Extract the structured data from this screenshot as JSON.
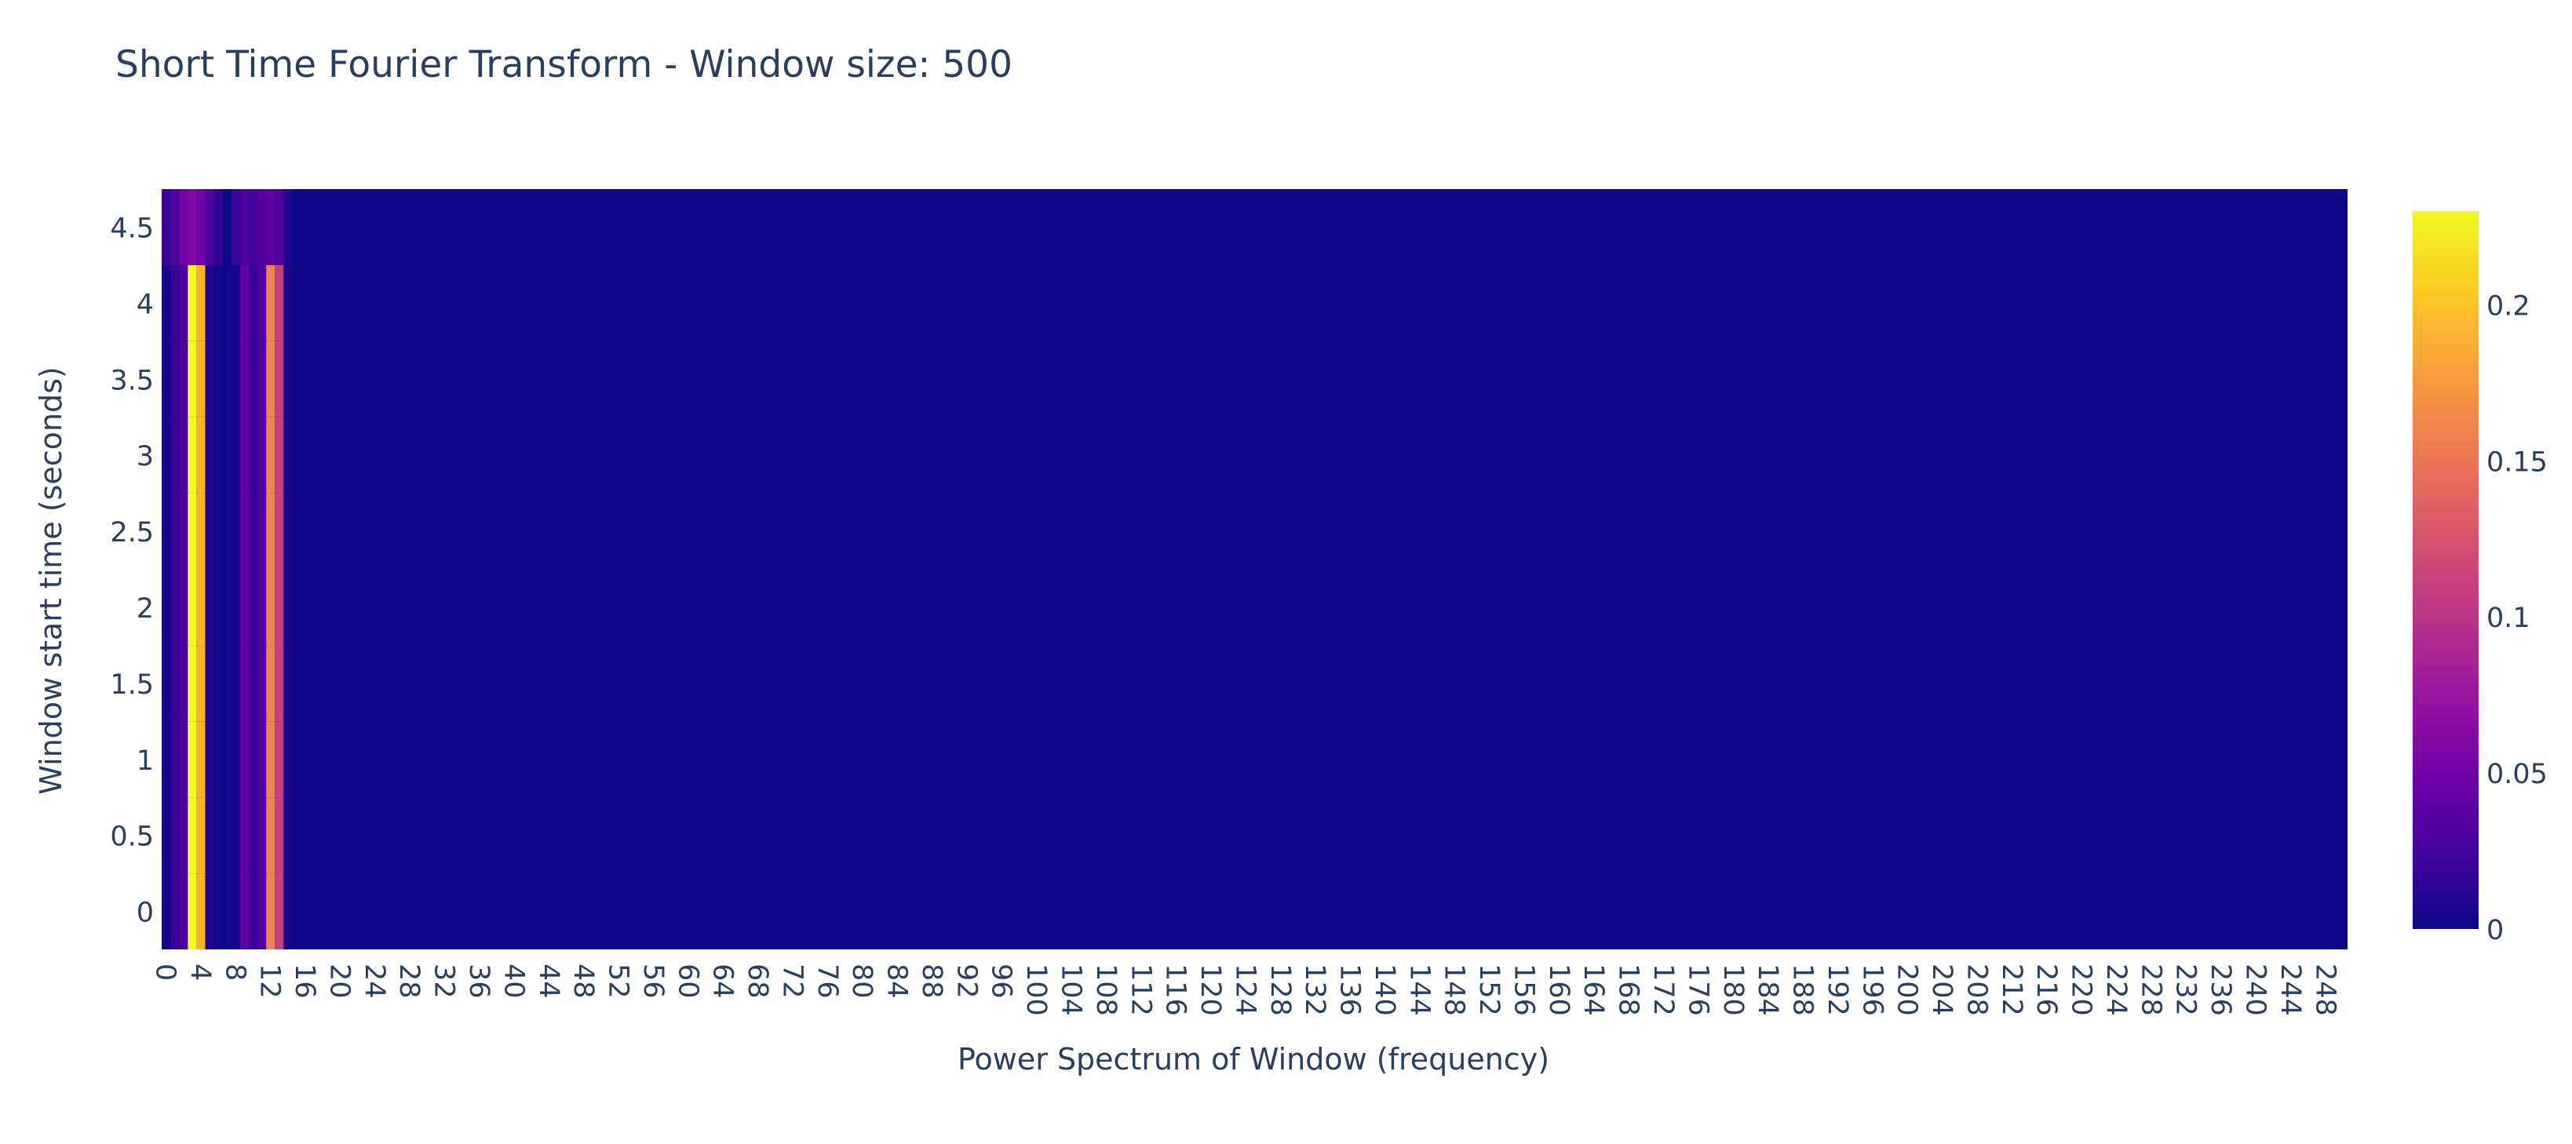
{
  "chart_data": {
    "type": "heatmap",
    "title": "Short Time Fourier Transform  -  Window size: 500",
    "xlabel": "Power Spectrum of Window (frequency)",
    "ylabel": "Window start time (seconds)",
    "x_range": [
      0,
      250
    ],
    "y_range": [
      -0.25,
      4.75
    ],
    "x_tick_step": 4,
    "y_ticks": [
      {
        "value": 0,
        "label": "0"
      },
      {
        "value": 0.5,
        "label": "0.5"
      },
      {
        "value": 1,
        "label": "1"
      },
      {
        "value": 1.5,
        "label": "1.5"
      },
      {
        "value": 2,
        "label": "2"
      },
      {
        "value": 2.5,
        "label": "2.5"
      },
      {
        "value": 3,
        "label": "3"
      },
      {
        "value": 3.5,
        "label": "3.5"
      },
      {
        "value": 4,
        "label": "4"
      },
      {
        "value": 4.5,
        "label": "4.5"
      }
    ],
    "window_starts": [
      0,
      0.5,
      1,
      1.5,
      2,
      2.5,
      3,
      3.5,
      4,
      4.5
    ],
    "frequency_bins": 251,
    "nonzero_power": [
      {
        "freq": 0,
        "rows": [
          0.005,
          0.005,
          0.005,
          0.005,
          0.005,
          0.005,
          0.005,
          0.005,
          0.005,
          0.02
        ]
      },
      {
        "freq": 1,
        "rows": [
          0.02,
          0.02,
          0.02,
          0.02,
          0.02,
          0.02,
          0.02,
          0.02,
          0.02,
          0.03
        ]
      },
      {
        "freq": 2,
        "rows": [
          0.03,
          0.03,
          0.03,
          0.03,
          0.03,
          0.03,
          0.03,
          0.03,
          0.03,
          0.05
        ]
      },
      {
        "freq": 3,
        "rows": [
          0.23,
          0.23,
          0.23,
          0.23,
          0.23,
          0.23,
          0.23,
          0.23,
          0.23,
          0.06
        ]
      },
      {
        "freq": 4,
        "rows": [
          0.19,
          0.19,
          0.19,
          0.19,
          0.19,
          0.19,
          0.19,
          0.19,
          0.19,
          0.05
        ]
      },
      {
        "freq": 5,
        "rows": [
          0.01,
          0.01,
          0.01,
          0.01,
          0.01,
          0.01,
          0.01,
          0.01,
          0.01,
          0.03
        ]
      },
      {
        "freq": 6,
        "rows": [
          0.004,
          0.004,
          0.004,
          0.004,
          0.004,
          0.004,
          0.004,
          0.004,
          0.004,
          0.015
        ]
      },
      {
        "freq": 8,
        "rows": [
          0.004,
          0.004,
          0.004,
          0.004,
          0.004,
          0.004,
          0.004,
          0.004,
          0.004,
          0.02
        ]
      },
      {
        "freq": 9,
        "rows": [
          0.04,
          0.04,
          0.04,
          0.04,
          0.04,
          0.04,
          0.04,
          0.04,
          0.04,
          0.03
        ]
      },
      {
        "freq": 10,
        "rows": [
          0.02,
          0.02,
          0.02,
          0.02,
          0.02,
          0.02,
          0.02,
          0.02,
          0.02,
          0.025
        ]
      },
      {
        "freq": 11,
        "rows": [
          0.03,
          0.03,
          0.03,
          0.03,
          0.03,
          0.03,
          0.03,
          0.03,
          0.03,
          0.035
        ]
      },
      {
        "freq": 12,
        "rows": [
          0.16,
          0.16,
          0.16,
          0.16,
          0.16,
          0.16,
          0.16,
          0.16,
          0.16,
          0.04
        ]
      },
      {
        "freq": 13,
        "rows": [
          0.11,
          0.11,
          0.11,
          0.11,
          0.11,
          0.11,
          0.11,
          0.11,
          0.11,
          0.03
        ]
      },
      {
        "freq": 14,
        "rows": [
          0.005,
          0.005,
          0.005,
          0.005,
          0.005,
          0.005,
          0.005,
          0.005,
          0.005,
          0.01
        ]
      }
    ],
    "colorscale": [
      "#0d0887",
      "#46039f",
      "#7201a8",
      "#9c179e",
      "#bd3786",
      "#d8576b",
      "#ed7953",
      "#fb9f3a",
      "#fdca26",
      "#f0f921"
    ],
    "colorbar": {
      "range": [
        0,
        0.23
      ],
      "ticks": [
        {
          "value": 0,
          "label": "0"
        },
        {
          "value": 0.05,
          "label": "0.05"
        },
        {
          "value": 0.1,
          "label": "0.1"
        },
        {
          "value": 0.15,
          "label": "0.15"
        },
        {
          "value": 0.2,
          "label": "0.2"
        }
      ]
    },
    "grid": false,
    "legend": "colorbar-right"
  }
}
